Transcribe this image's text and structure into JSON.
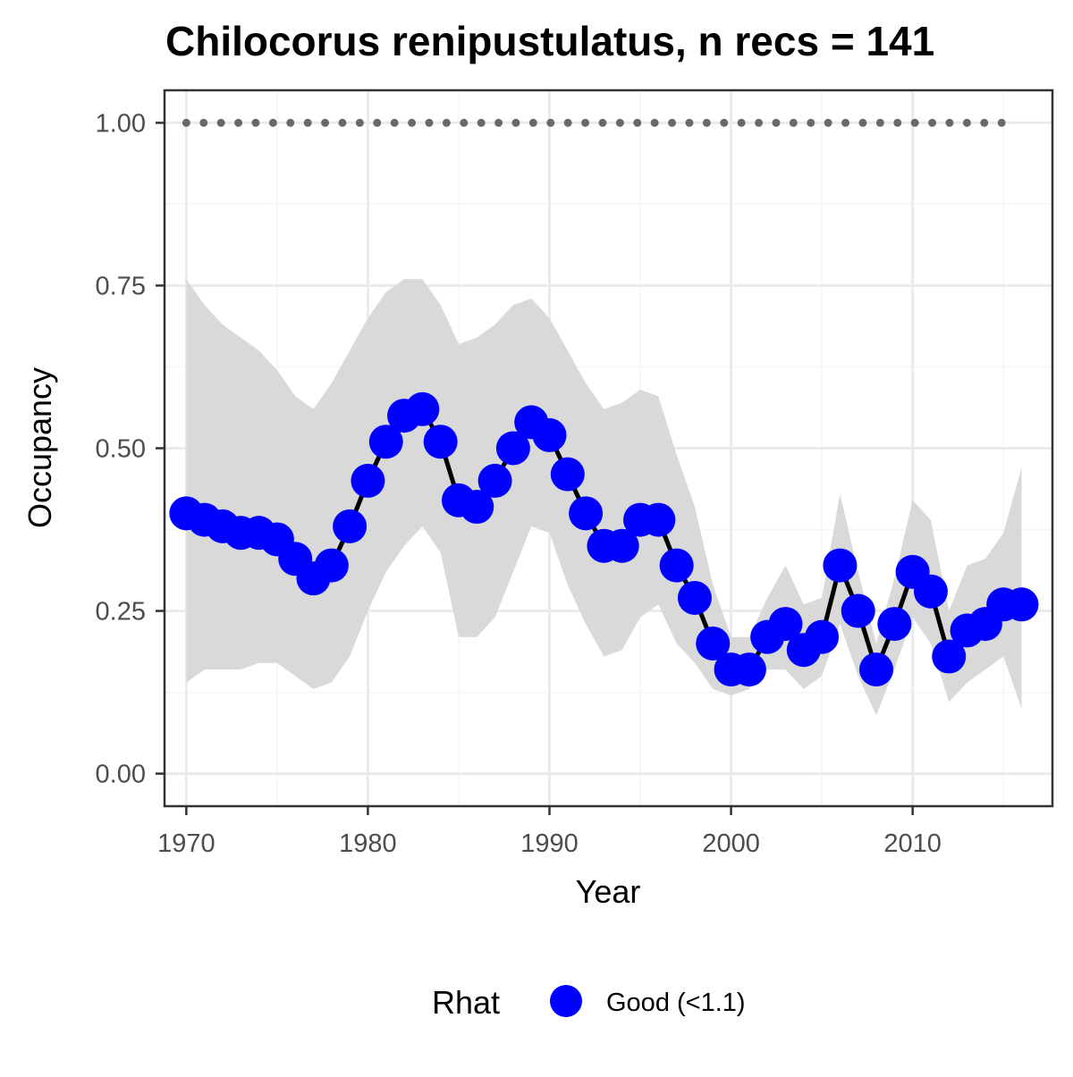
{
  "chart_data": {
    "type": "line",
    "title": "Chilocorus renipustulatus, n recs = 141",
    "xlabel": "Year",
    "ylabel": "Occupancy",
    "xlim": [
      1968.8,
      2017.7
    ],
    "ylim": [
      -0.05,
      1.05
    ],
    "x_ticks": [
      1970,
      1980,
      1990,
      2000,
      2010
    ],
    "y_ticks": [
      0.0,
      0.25,
      0.5,
      0.75,
      1.0
    ],
    "x_tick_labels": [
      "1970",
      "1980",
      "1990",
      "2000",
      "2010"
    ],
    "y_tick_labels": [
      "0.00",
      "0.25",
      "0.50",
      "0.75",
      "1.00"
    ],
    "grid": true,
    "x": [
      1970,
      1971,
      1972,
      1973,
      1974,
      1975,
      1976,
      1977,
      1978,
      1979,
      1980,
      1981,
      1982,
      1983,
      1984,
      1985,
      1986,
      1987,
      1988,
      1989,
      1990,
      1991,
      1992,
      1993,
      1994,
      1995,
      1996,
      1997,
      1998,
      1999,
      2000,
      2001,
      2002,
      2003,
      2004,
      2005,
      2006,
      2007,
      2008,
      2009,
      2010,
      2011,
      2012,
      2013,
      2014,
      2015,
      2016
    ],
    "series": [
      {
        "name": "Good (<1.1)",
        "values": [
          0.4,
          0.39,
          0.38,
          0.37,
          0.37,
          0.36,
          0.33,
          0.3,
          0.32,
          0.38,
          0.45,
          0.51,
          0.55,
          0.56,
          0.51,
          0.42,
          0.41,
          0.45,
          0.5,
          0.54,
          0.52,
          0.46,
          0.4,
          0.35,
          0.35,
          0.39,
          0.39,
          0.32,
          0.27,
          0.2,
          0.16,
          0.16,
          0.21,
          0.23,
          0.19,
          0.21,
          0.32,
          0.25,
          0.16,
          0.23,
          0.31,
          0.28,
          0.18,
          0.22,
          0.23,
          0.26,
          0.26
        ]
      }
    ],
    "ci_lower": [
      0.14,
      0.16,
      0.16,
      0.16,
      0.17,
      0.17,
      0.15,
      0.13,
      0.14,
      0.18,
      0.25,
      0.31,
      0.35,
      0.38,
      0.34,
      0.21,
      0.21,
      0.24,
      0.31,
      0.38,
      0.37,
      0.29,
      0.23,
      0.18,
      0.19,
      0.24,
      0.26,
      0.2,
      0.17,
      0.13,
      0.12,
      0.13,
      0.16,
      0.16,
      0.13,
      0.15,
      0.23,
      0.15,
      0.09,
      0.16,
      0.24,
      0.2,
      0.11,
      0.14,
      0.16,
      0.18,
      0.1
    ],
    "ci_upper": [
      0.76,
      0.72,
      0.69,
      0.67,
      0.65,
      0.62,
      0.58,
      0.56,
      0.6,
      0.65,
      0.7,
      0.74,
      0.76,
      0.76,
      0.72,
      0.66,
      0.67,
      0.69,
      0.72,
      0.73,
      0.7,
      0.65,
      0.6,
      0.56,
      0.57,
      0.59,
      0.58,
      0.49,
      0.41,
      0.29,
      0.21,
      0.21,
      0.27,
      0.32,
      0.26,
      0.27,
      0.43,
      0.31,
      0.2,
      0.3,
      0.42,
      0.39,
      0.25,
      0.32,
      0.33,
      0.37,
      0.47
    ],
    "reference_line": {
      "value": 1.0,
      "style": "dotted",
      "x_range": [
        1970,
        2015
      ]
    },
    "legend": {
      "title": "Rhat",
      "position": "bottom",
      "entries": [
        "Good (<1.1)"
      ]
    },
    "colors": {
      "point": "#0000ff",
      "line": "#000000",
      "ribbon": "#d9d9d9",
      "reference": "#696969",
      "grid_major": "#ebebeb",
      "grid_minor": "#f5f5f5",
      "border": "#333333"
    }
  }
}
